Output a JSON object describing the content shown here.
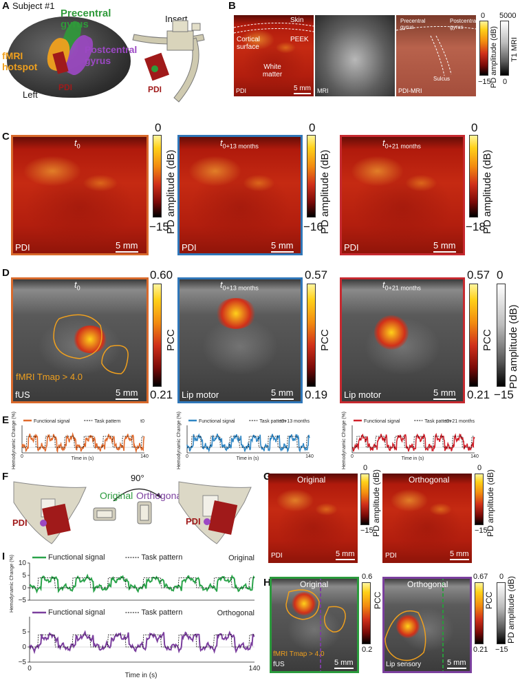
{
  "panels": {
    "A": "A",
    "B": "B",
    "C": "C",
    "D": "D",
    "E": "E",
    "F": "F",
    "G": "G",
    "H": "H",
    "I": "I"
  },
  "colors": {
    "orange_frame": "#d8692b",
    "blue_frame": "#2f76b8",
    "red_frame": "#c6292f",
    "green_frame": "#2a9a3c",
    "purple_frame": "#7b3f9e",
    "fmri_orange": "#f0a01e",
    "precentral": "#2f9a3a",
    "postcentral": "#9c48c4",
    "pdi_red": "#a01a1a"
  },
  "A": {
    "subject": "Subject #1",
    "precentral": "Precentral gyrus",
    "postcentral": "Postcentral gyrus",
    "fmri": "fMRI hotspot",
    "pdi": "PDI",
    "left": "Left",
    "insert": "Insert",
    "pdi2": "PDI"
  },
  "B": {
    "skin": "Skin",
    "cortical": "Cortical surface",
    "peek": "PEEK",
    "white_matter": "White matter",
    "pdi": "PDI",
    "scale": "5 mm",
    "mri": "MRI",
    "precentral": "Precentral gyrus",
    "postcentral": "Postcentral gyrus",
    "sulcus": "Sulcus",
    "pdimri": "PDI-MRI",
    "cb1_top": "0",
    "cb1_bottom": "−15",
    "cb1_label": "PD amplitude (dB)",
    "cb2_top": "5000",
    "cb2_bottom": "0",
    "cb2_label": "T1 MRI"
  },
  "C": [
    {
      "time": "t",
      "sub": "0",
      "label": "PDI",
      "scale": "5 mm",
      "cb_top": "0",
      "cb_bottom": "−15",
      "cb_label": "PD amplitude (dB)"
    },
    {
      "time": "t",
      "sub": "0+13 months",
      "label": "PDI",
      "scale": "5 mm",
      "cb_top": "0",
      "cb_bottom": "−16",
      "cb_label": "PD amplitude (dB)"
    },
    {
      "time": "t",
      "sub": "0+21 months",
      "label": "PDI",
      "scale": "5 mm",
      "cb_top": "0",
      "cb_bottom": "−18",
      "cb_label": "PD amplitude (dB)"
    }
  ],
  "D": [
    {
      "time": "t",
      "sub": "0",
      "threshold": "fMRI Tmap > 4.0",
      "label": "fUS",
      "scale": "5 mm",
      "cb_top": "0.60",
      "cb_bottom": "0.21",
      "cb_label": "PCC"
    },
    {
      "time": "t",
      "sub": "0+13 months",
      "label": "Lip motor",
      "scale": "5 mm",
      "cb_top": "0.57",
      "cb_bottom": "0.19",
      "cb_label": "PCC"
    },
    {
      "time": "t",
      "sub": "0+21 months",
      "label": "Lip motor",
      "scale": "5 mm",
      "cb_top": "0.57",
      "cb_bottom": "0.21",
      "cb_label": "PCC",
      "cb2_top": "0",
      "cb2_bottom": "−15",
      "cb2_label": "PD amplitude (dB)"
    }
  ],
  "E": {
    "legend_func": "Functional signal",
    "legend_task": "Task pattern",
    "ylabel": "Hemodynamic Change (%)",
    "xlabel": "Time in (s)",
    "x0": "0",
    "x1": "140",
    "tags": [
      "t0",
      "t0+13 months",
      "t0+21 months"
    ]
  },
  "F": {
    "rotation": "90°",
    "original": "Original",
    "orthogonal": "Orthogonal",
    "pdi_left": "PDI",
    "pdi_right": "PDI"
  },
  "G": [
    {
      "title": "Original",
      "label": "PDI",
      "scale": "5 mm",
      "cb_top": "0",
      "cb_bottom": "−15",
      "cb_label": "PD amplitude (dB)"
    },
    {
      "title": "Orthogonal",
      "label": "PDI",
      "scale": "5 mm",
      "cb_top": "0",
      "cb_bottom": "−15",
      "cb_label": "PD amplitude (dB)"
    }
  ],
  "H": [
    {
      "title": "Original",
      "threshold": "fMRI Tmap > 4.0",
      "label": "fUS",
      "scale": "5 mm",
      "cb_top": "0.6",
      "cb_bottom": "0.2",
      "cb_label": "PCC"
    },
    {
      "title": "Orthogonal",
      "label": "Lip sensory",
      "scale": "5 mm",
      "cb_top": "0.67",
      "cb_bottom": "0.21",
      "cb_label": "PCC",
      "cb2_top": "0",
      "cb2_bottom": "−15",
      "cb2_label": "PD amplitude (dB)"
    }
  ],
  "I": {
    "legend_func": "Functional signal",
    "legend_task": "Task pattern",
    "top_tag": "Original",
    "bottom_tag": "Orthogonal",
    "ylabel": "Hemodynamic Change (%)",
    "xlabel": "Time in (s)",
    "yticks": [
      "10",
      "5",
      "0",
      "−5"
    ],
    "x0": "0",
    "x1": "140"
  },
  "chart_data": [
    {
      "type": "line",
      "title": "",
      "tag": "t0",
      "xlabel": "Time in (s)",
      "ylabel": "Hemodynamic Change (%)",
      "xlim": [
        0,
        140
      ],
      "ylim": [
        -5,
        10
      ],
      "series": [
        {
          "name": "Functional signal",
          "color": "#e0692b"
        },
        {
          "name": "Task pattern",
          "color": "#000000",
          "style": "dashed"
        }
      ]
    },
    {
      "type": "line",
      "title": "",
      "tag": "t0+13 months",
      "xlabel": "Time in (s)",
      "ylabel": "Hemodynamic Change (%)",
      "xlim": [
        0,
        140
      ],
      "ylim": [
        -5,
        10
      ],
      "series": [
        {
          "name": "Functional signal",
          "color": "#2f86c4"
        },
        {
          "name": "Task pattern",
          "color": "#000000",
          "style": "dashed"
        }
      ]
    },
    {
      "type": "line",
      "title": "",
      "tag": "t0+21 months",
      "xlabel": "Time in (s)",
      "ylabel": "Hemodynamic Change (%)",
      "xlim": [
        0,
        140
      ],
      "ylim": [
        -5,
        10
      ],
      "series": [
        {
          "name": "Functional signal",
          "color": "#d0202a"
        },
        {
          "name": "Task pattern",
          "color": "#000000",
          "style": "dashed"
        }
      ]
    },
    {
      "type": "line",
      "title": "",
      "tag": "Original",
      "xlabel": "",
      "ylabel": "Hemodynamic Change (%)",
      "xlim": [
        0,
        140
      ],
      "ylim": [
        -5,
        10
      ],
      "series": [
        {
          "name": "Functional signal",
          "color": "#2aa34a"
        },
        {
          "name": "Task pattern",
          "color": "#000000",
          "style": "dashed"
        }
      ]
    },
    {
      "type": "line",
      "title": "",
      "tag": "Orthogonal",
      "xlabel": "Time in (s)",
      "ylabel": "",
      "xlim": [
        0,
        140
      ],
      "ylim": [
        -5,
        10
      ],
      "series": [
        {
          "name": "Functional signal",
          "color": "#7b3f9e"
        },
        {
          "name": "Task pattern",
          "color": "#000000",
          "style": "dashed"
        }
      ]
    }
  ]
}
